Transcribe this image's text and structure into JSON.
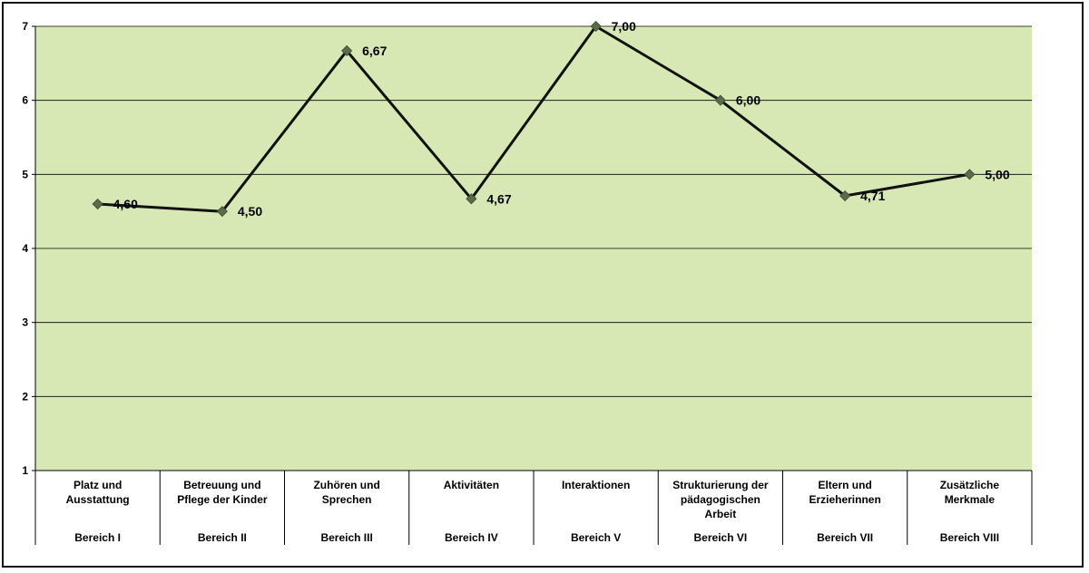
{
  "chart_data": {
    "type": "line",
    "title": "",
    "xlabel": "",
    "ylabel": "",
    "ylim": [
      1,
      7
    ],
    "yticks": [
      "1",
      "2",
      "3",
      "4",
      "5",
      "6",
      "7"
    ],
    "grid": true,
    "legend": "none",
    "categories": [
      {
        "label_lines": [
          "Platz und",
          "Ausstattung"
        ],
        "group": "Bereich I"
      },
      {
        "label_lines": [
          "Betreuung und",
          "Pflege der Kinder"
        ],
        "group": "Bereich II"
      },
      {
        "label_lines": [
          "Zuhören und",
          "Sprechen"
        ],
        "group": "Bereich III"
      },
      {
        "label_lines": [
          "Aktivitäten"
        ],
        "group": "Bereich IV"
      },
      {
        "label_lines": [
          "Interaktionen"
        ],
        "group": "Bereich V"
      },
      {
        "label_lines": [
          "Strukturierung der",
          "pädagogischen",
          "Arbeit"
        ],
        "group": "Bereich VI"
      },
      {
        "label_lines": [
          "Eltern und",
          "Erzieherinnen"
        ],
        "group": "Bereich VII"
      },
      {
        "label_lines": [
          "Zusätzliche",
          "Merkmale"
        ],
        "group": "Bereich VIII"
      }
    ],
    "series": [
      {
        "values": [
          4.6,
          4.5,
          6.67,
          4.67,
          7.0,
          6.0,
          4.71,
          5.0
        ],
        "data_labels": [
          "4,60",
          "4,50",
          "6,67",
          "4,67",
          "7,00",
          "6,00",
          "4,71",
          "5,00"
        ]
      }
    ],
    "colors": {
      "plot_background": "#d8e8b5",
      "line": "#111111",
      "marker": "#5a6b48",
      "gridline": "#000000"
    }
  }
}
